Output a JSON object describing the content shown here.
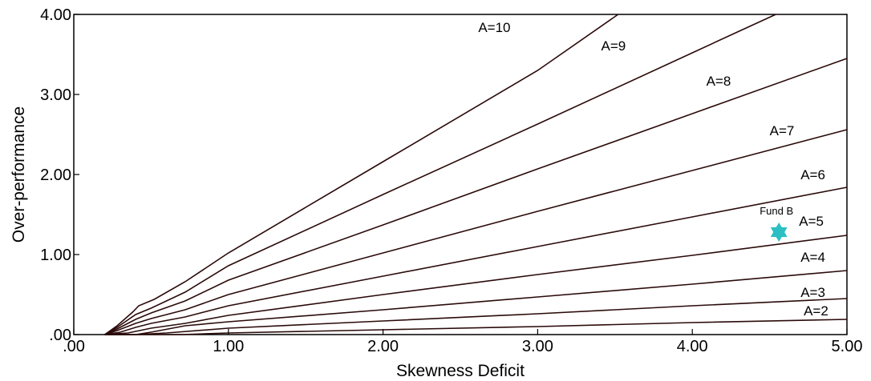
{
  "chart_data": {
    "type": "line",
    "title": "",
    "xlabel": "Skewness Deficit",
    "ylabel": "Over-performance",
    "xlim": [
      0,
      5
    ],
    "ylim": [
      0,
      4
    ],
    "xticks": [
      0,
      1,
      2,
      3,
      4,
      5
    ],
    "xtick_labels": [
      ".00",
      "1.00",
      "2.00",
      "3.00",
      "4.00",
      "5.00"
    ],
    "yticks": [
      0,
      1,
      2,
      3,
      4
    ],
    "ytick_labels": [
      ".00",
      "1.00",
      "2.00",
      "3.00",
      "4.00"
    ],
    "grid": false,
    "line_color": "#2b0a0a",
    "series": [
      {
        "name": "A=2",
        "points": [
          [
            0.2,
            0
          ],
          [
            0.4,
            0
          ],
          [
            0.7,
            0
          ],
          [
            1.0,
            0.02
          ],
          [
            2.0,
            0.06
          ],
          [
            3.0,
            0.1
          ],
          [
            4.0,
            0.15
          ],
          [
            5.0,
            0.19
          ]
        ]
      },
      {
        "name": "A=3",
        "points": [
          [
            0.2,
            0
          ],
          [
            0.4,
            0
          ],
          [
            0.6,
            0.02
          ],
          [
            1.0,
            0.08
          ],
          [
            2.0,
            0.17
          ],
          [
            3.0,
            0.26
          ],
          [
            4.0,
            0.36
          ],
          [
            5.0,
            0.45
          ]
        ]
      },
      {
        "name": "A=4",
        "points": [
          [
            0.2,
            0
          ],
          [
            0.4,
            0
          ],
          [
            0.5,
            0.03
          ],
          [
            0.72,
            0.11
          ],
          [
            1.0,
            0.16
          ],
          [
            2.0,
            0.31
          ],
          [
            3.0,
            0.47
          ],
          [
            4.0,
            0.63
          ],
          [
            5.0,
            0.8
          ]
        ]
      },
      {
        "name": "A=5",
        "points": [
          [
            0.2,
            0
          ],
          [
            0.35,
            0.02
          ],
          [
            0.5,
            0.08
          ],
          [
            0.72,
            0.14
          ],
          [
            1.0,
            0.24
          ],
          [
            2.0,
            0.5
          ],
          [
            3.0,
            0.75
          ],
          [
            4.0,
            0.99
          ],
          [
            5.0,
            1.24
          ]
        ]
      },
      {
        "name": "A=6",
        "points": [
          [
            0.2,
            0
          ],
          [
            0.3,
            0.03
          ],
          [
            0.4,
            0.09
          ],
          [
            0.5,
            0.14
          ],
          [
            0.72,
            0.22
          ],
          [
            1.0,
            0.36
          ],
          [
            2.0,
            0.73
          ],
          [
            3.0,
            1.1
          ],
          [
            4.0,
            1.47
          ],
          [
            5.0,
            1.84
          ]
        ]
      },
      {
        "name": "A=7",
        "points": [
          [
            0.2,
            0
          ],
          [
            0.28,
            0.05
          ],
          [
            0.4,
            0.14
          ],
          [
            0.5,
            0.2
          ],
          [
            0.72,
            0.31
          ],
          [
            1.0,
            0.5
          ],
          [
            2.0,
            1.02
          ],
          [
            3.0,
            1.54
          ],
          [
            4.0,
            2.05
          ],
          [
            5.0,
            2.56
          ]
        ]
      },
      {
        "name": "A=8",
        "points": [
          [
            0.2,
            0
          ],
          [
            0.28,
            0.07
          ],
          [
            0.4,
            0.19
          ],
          [
            0.5,
            0.27
          ],
          [
            0.72,
            0.42
          ],
          [
            1.0,
            0.68
          ],
          [
            2.0,
            1.37
          ],
          [
            3.0,
            2.07
          ],
          [
            4.0,
            2.76
          ],
          [
            5.0,
            3.45
          ]
        ]
      },
      {
        "name": "A=9",
        "points": [
          [
            0.2,
            0
          ],
          [
            0.28,
            0.09
          ],
          [
            0.4,
            0.25
          ],
          [
            0.5,
            0.33
          ],
          [
            0.72,
            0.53
          ],
          [
            1.0,
            0.86
          ],
          [
            2.0,
            1.75
          ],
          [
            3.0,
            2.63
          ],
          [
            4.0,
            3.52
          ],
          [
            4.28,
            3.77
          ],
          [
            4.54,
            4.0
          ]
        ]
      },
      {
        "name": "A=10",
        "points": [
          [
            0.2,
            0
          ],
          [
            0.28,
            0.11
          ],
          [
            0.38,
            0.28
          ],
          [
            0.42,
            0.36
          ],
          [
            0.52,
            0.44
          ],
          [
            0.72,
            0.66
          ],
          [
            1.0,
            1.02
          ],
          [
            2.0,
            2.16
          ],
          [
            3.0,
            3.3
          ],
          [
            3.52,
            4.0
          ]
        ]
      }
    ],
    "curve_labels": [
      {
        "text": "A=10",
        "x": 2.72,
        "y": 3.78
      },
      {
        "text": "A=9",
        "x": 3.49,
        "y": 3.55
      },
      {
        "text": "A=8",
        "x": 4.17,
        "y": 3.11
      },
      {
        "text": "A=7",
        "x": 4.58,
        "y": 2.49
      },
      {
        "text": "A=6",
        "x": 4.78,
        "y": 1.94
      },
      {
        "text": "A=5",
        "x": 4.77,
        "y": 1.36
      },
      {
        "text": "A=4",
        "x": 4.78,
        "y": 0.91
      },
      {
        "text": "A=3",
        "x": 4.78,
        "y": 0.47
      },
      {
        "text": "A=2",
        "x": 4.8,
        "y": 0.24
      }
    ],
    "point": {
      "label": "Fund B",
      "x": 4.56,
      "y": 1.28,
      "marker": "six-pointed-star",
      "color": "#2bbfc3"
    }
  }
}
